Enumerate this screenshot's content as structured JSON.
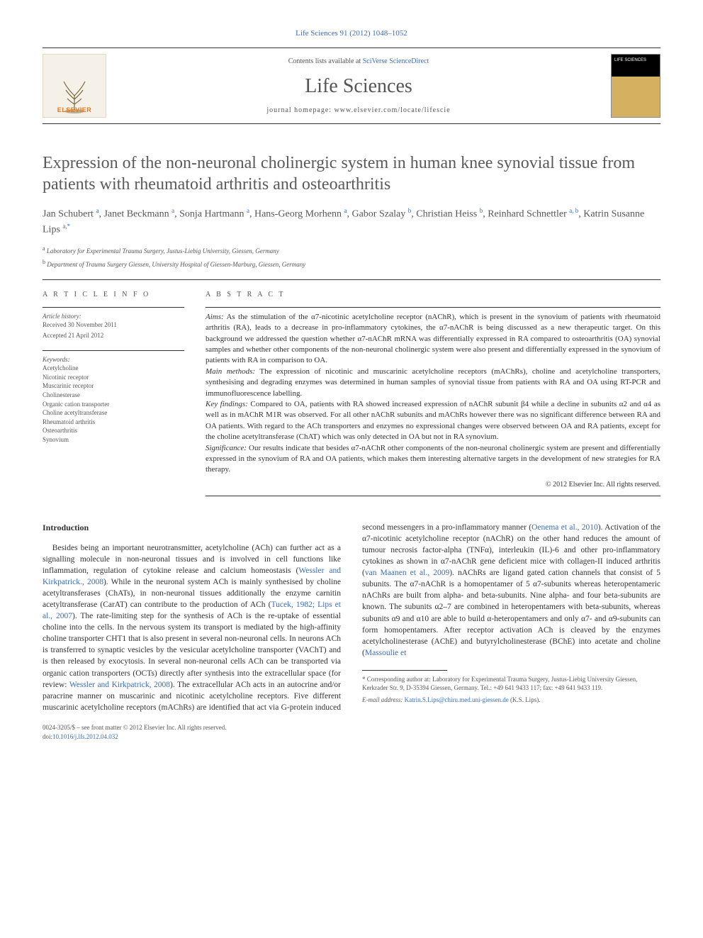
{
  "header": {
    "citation": "Life Sciences 91 (2012) 1048–1052",
    "contents_prefix": "Contents lists available at ",
    "contents_link": "SciVerse ScienceDirect",
    "journal": "Life Sciences",
    "homepage_prefix": "journal homepage: ",
    "homepage": "www.elsevier.com/locate/lifescie",
    "publisher_logo_text": "ELSEVIER",
    "cover_tag": "LIFE SCIENCES"
  },
  "article": {
    "title": "Expression of the non-neuronal cholinergic system in human knee synovial tissue from patients with rheumatoid arthritis and osteoarthritis",
    "authors_html": "Jan Schubert <sup>a</sup>, Janet Beckmann <sup>a</sup>, Sonja Hartmann <sup>a</sup>, Hans-Georg Morhenn <sup>a</sup>, Gabor Szalay <sup>b</sup>, Christian Heiss <sup>b</sup>, Reinhard Schnettler <sup>a, b</sup>, Katrin Susanne Lips <sup>a,*</sup>",
    "affiliations": [
      {
        "sup": "a",
        "text": "Laboratory for Experimental Trauma Surgery, Justus-Liebig University, Giessen, Germany"
      },
      {
        "sup": "b",
        "text": "Department of Trauma Surgery Giessen, University Hospital of Giessen-Marburg, Giessen, Germany"
      }
    ]
  },
  "meta": {
    "info_label": "A R T I C L E   I N F O",
    "history_label": "Article history:",
    "received": "Received 30 November 2011",
    "accepted": "Accepted 21 April 2012",
    "keywords_label": "Keywords:",
    "keywords": [
      "Acetylcholine",
      "Nicotinic receptor",
      "Muscarinic receptor",
      "Cholinesterase",
      "Organic cation transporter",
      "Choline acetyltransferase",
      "Rheumatoid arthritis",
      "Osteoarthritis",
      "Synovium"
    ]
  },
  "abstract": {
    "label": "A B S T R A C T",
    "aims_label": "Aims:",
    "aims": "As the stimulation of the α7-nicotinic acetylcholine receptor (nAChR), which is present in the synovium of patients with rheumatoid arthritis (RA), leads to a decrease in pro-inflammatory cytokines, the α7-nAChR is being discussed as a new therapeutic target. On this background we addressed the question whether α7-nAChR mRNA was differentially expressed in RA compared to osteoarthritis (OA) synovial samples and whether other components of the non-neuronal cholinergic system were also present and differentially expressed in the synovium of patients with RA in comparison to OA.",
    "methods_label": "Main methods:",
    "methods": "The expression of nicotinic and muscarinic acetylcholine receptors (mAChRs), choline and acetylcholine transporters, synthesising and degrading enzymes was determined in human samples of synovial tissue from patients with RA and OA using RT-PCR and immunofluorescence labelling.",
    "findings_label": "Key findings:",
    "findings": "Compared to OA, patients with RA showed increased expression of nAChR subunit β4 while a decline in subunits α2 and α4 as well as in mAChR M1R was observed. For all other nAChR subunits and mAChRs however there was no significant difference between RA and OA patients. With regard to the ACh transporters and enzymes no expressional changes were observed between OA and RA patients, except for the choline acetyltransferase (ChAT) which was only detected in OA but not in RA synovium.",
    "significance_label": "Significance:",
    "significance": "Our results indicate that besides α7-nAChR other components of the non-neuronal cholinergic system are present and differentially expressed in the synovium of RA and OA patients, which makes them interesting alternative targets in the development of new strategies for RA therapy.",
    "copyright": "© 2012 Elsevier Inc. All rights reserved."
  },
  "intro": {
    "heading": "Introduction",
    "para1_pre": "Besides being an important neurotransmitter, acetylcholine (ACh) can further act as a signalling molecule in non-neuronal tissues and is involved in cell functions like inflammation, regulation of cytokine release and calcium homeostasis (",
    "ref1": "Wessler and Kirkpatrick., 2008",
    "para1_mid1": "). While in the neuronal system ACh is mainly synthesised by choline acetyltransferases (ChATs), in non-neuronal tissues additionally the enzyme carnitin acetyltransferase (CarAT) can contribute to the production of ACh (",
    "ref2": "Tucek, 1982; Lips et al., 2007",
    "para1_post": "). The rate-limiting step for the synthesis of ACh is the re-uptake of essential choline into the cells. In the nervous system its transport is mediated by the high-affinity choline transporter CHT1 that is also present in several non-neuronal cells. In neurons ACh is transferred to synaptic vesicles by the vesicular acetylcholine transporter (VAChT) and is then released",
    "para2_pre": "by exocytosis. In several non-neuronal cells ACh can be transported via organic cation transporters (OCTs) directly after synthesis into the extracellular space (for review: ",
    "ref3": "Wessler and Kirkpatrick, 2008",
    "para2_mid1": "). The extracellular ACh acts in an autocrine and/or paracrine manner on muscarinic and nicotinic acetylcholine receptors. Five different muscarinic acetylcholine receptors (mAChRs) are identified that act via G-protein induced second messengers in a pro-inflammatory manner (",
    "ref4": "Oenema et al., 2010",
    "para2_mid2": "). Activation of the α7-nicotinic acetylcholine receptor (nAChR) on the other hand reduces the amount of tumour necrosis factor-alpha (TNFα), interleukin (IL)-6 and other pro-inflammatory cytokines as shown in α7-nAChR gene deficient mice with collagen-II induced arthritis (",
    "ref5": "van Maanen et al., 2009",
    "para2_post": "). nAChRs are ligand gated cation channels that consist of 5 subunits. The α7-nAChR is a homopentamer of 5 α7-subunits whereas heteropentameric nAChRs are built from alpha- and beta-subunits. Nine alpha- and four beta-subunits are known. The subunits α2–7 are combined in heteropentamers with beta-subunits, whereas subunits α9 and α10 are able to build α-heteropentamers and only α7- and α9-subunits can form homopentamers. After receptor activation ACh is cleaved by the enzymes acetylcholinesterase (AChE) and butyrylcholinesterase (BChE) into acetate and choline (",
    "ref6": "Massoulie et"
  },
  "footnotes": {
    "corr_label": "* ",
    "corr_text": "Corresponding author at: Laboratory for Experimental Trauma Surgery, Justus-Liebig University Giessen, Kerkrader Str. 9, D-35394 Giessen, Germany. Tel.: +49 641 9433 117; fax: +49 641 9433 119.",
    "email_label": "E-mail address: ",
    "email": "Katrin.S.Lips@chiru.med.uni-giessen.de",
    "email_suffix": " (K.S. Lips)."
  },
  "bottom": {
    "line1_pre": "0024-3205/$ – see front matter © 2012 Elsevier Inc. All rights reserved.",
    "doi_label": "doi:",
    "doi": "10.1016/j.lfs.2012.04.032"
  },
  "colors": {
    "link": "#3a6db3",
    "text": "#323232",
    "muted": "#555555",
    "elsevier_orange": "#e67817"
  }
}
